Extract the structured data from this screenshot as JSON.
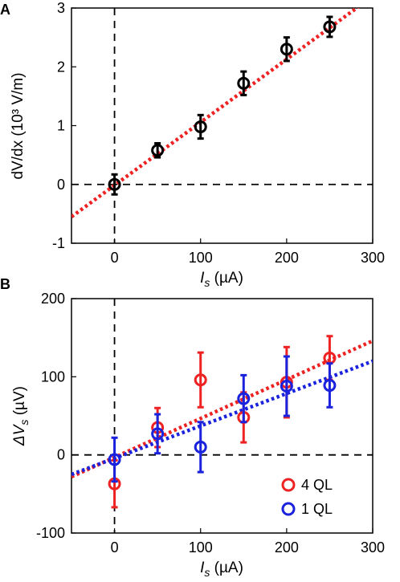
{
  "chart_data": [
    {
      "panel_label": "A",
      "type": "scatter",
      "xlabel": {
        "main": "I",
        "sub": "s",
        "unit": " (µA)"
      },
      "ylabel": "dV/dx (10³ V/m)",
      "xlim": [
        -50,
        300
      ],
      "ylim": [
        -1,
        3
      ],
      "xticks": [
        "0",
        "100",
        "200",
        "300"
      ],
      "yticks": [
        "-1",
        "0",
        "1",
        "2",
        "3"
      ],
      "grid": false,
      "reference_lines": {
        "x0": true,
        "y0": true
      },
      "series": [
        {
          "color": "#000000",
          "marker": "open-circle",
          "x": [
            0,
            50,
            100,
            150,
            200,
            250
          ],
          "y": [
            0.0,
            0.58,
            0.98,
            1.72,
            2.3,
            2.68
          ],
          "yerr": [
            0.17,
            0.12,
            0.2,
            0.2,
            0.2,
            0.17
          ],
          "fit": {
            "color": "#ee2222",
            "style": "dotted",
            "x": [
              -50,
              300
            ],
            "y": [
              -0.55,
              3.2
            ]
          }
        }
      ]
    },
    {
      "panel_label": "B",
      "type": "scatter",
      "xlabel": {
        "main": "I",
        "sub": "s",
        "unit": " (µA)"
      },
      "ylabel": {
        "main": "ΔV",
        "sub": "s",
        "unit": " (µV)"
      },
      "xlim": [
        -50,
        300
      ],
      "ylim": [
        -100,
        200
      ],
      "xticks": [
        "0",
        "100",
        "200",
        "300"
      ],
      "yticks": [
        "-100",
        "0",
        "100",
        "200"
      ],
      "grid": false,
      "legend_position": "bottom-right",
      "reference_lines": {
        "x0": true,
        "y0": true
      },
      "series": [
        {
          "name": "4 QL",
          "color": "#ee2222",
          "marker": "open-circle",
          "x": [
            0,
            50,
            100,
            150,
            200,
            250
          ],
          "y": [
            -37,
            35,
            96,
            48,
            93,
            124
          ],
          "yerr": [
            30,
            25,
            35,
            32,
            45,
            28
          ],
          "fit": {
            "color": "#ee2222",
            "style": "dotted",
            "x": [
              -50,
              300
            ],
            "y": [
              -28,
              146
            ]
          }
        },
        {
          "name": "1 QL",
          "color": "#1a22dd",
          "marker": "open-circle",
          "x": [
            0,
            50,
            100,
            150,
            200,
            250
          ],
          "y": [
            -6,
            27,
            10,
            72,
            88,
            89
          ],
          "yerr": [
            28,
            25,
            32,
            30,
            38,
            28
          ],
          "fit": {
            "color": "#1a22dd",
            "style": "dotted",
            "x": [
              -50,
              300
            ],
            "y": [
              -25,
              120
            ]
          }
        }
      ]
    }
  ]
}
